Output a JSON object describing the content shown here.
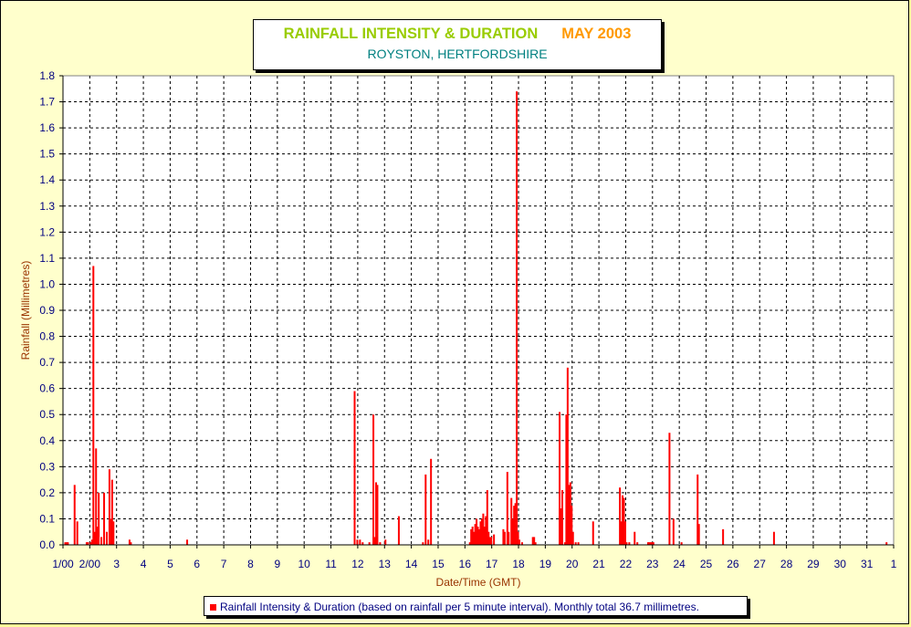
{
  "chart_data": {
    "type": "bar",
    "title": "RAINFALL INTENSITY & DURATION",
    "month": "MAY 2003",
    "subtitle": "ROYSTON, HERTFORDSHIRE",
    "xlabel": "Date/Time (GMT)",
    "ylabel": "Rainfall (Millimetres)",
    "ylim": [
      0,
      1.8
    ],
    "xlim": [
      1,
      32
    ],
    "grid": true,
    "x_tick_labels": [
      "1/00",
      "2/00",
      "3",
      "4",
      "5",
      "6",
      "7",
      "8",
      "9",
      "10",
      "11",
      "12",
      "13",
      "14",
      "15",
      "16",
      "17",
      "18",
      "19",
      "20",
      "21",
      "22",
      "23",
      "24",
      "25",
      "26",
      "27",
      "28",
      "29",
      "30",
      "31",
      "1"
    ],
    "y_tick_labels": [
      "0.0",
      "0.1",
      "0.2",
      "0.3",
      "0.4",
      "0.5",
      "0.6",
      "0.7",
      "0.8",
      "0.9",
      "1.0",
      "1.1",
      "1.2",
      "1.3",
      "1.4",
      "1.5",
      "1.6",
      "1.7",
      "1.8"
    ],
    "bar_color": "#ff0000",
    "series": [
      {
        "name": "Rainfall Intensity & Duration (based on rainfall per 5 minute interval). Monthly total 36.7 millimetres.",
        "points": [
          [
            1.05,
            0.01
          ],
          [
            1.1,
            0.01
          ],
          [
            1.15,
            0.01
          ],
          [
            1.4,
            0.23
          ],
          [
            1.5,
            0.09
          ],
          [
            1.85,
            0.01
          ],
          [
            1.9,
            0.01
          ],
          [
            2.0,
            0.01
          ],
          [
            2.05,
            0.02
          ],
          [
            2.1,
            1.07
          ],
          [
            2.15,
            0.05
          ],
          [
            2.2,
            0.37
          ],
          [
            2.25,
            0.07
          ],
          [
            2.3,
            0.2
          ],
          [
            2.4,
            0.03
          ],
          [
            2.5,
            0.2
          ],
          [
            2.6,
            0.05
          ],
          [
            2.7,
            0.29
          ],
          [
            2.75,
            0.1
          ],
          [
            2.8,
            0.25
          ],
          [
            2.85,
            0.09
          ],
          [
            3.45,
            0.02
          ],
          [
            3.5,
            0.01
          ],
          [
            5.6,
            0.02
          ],
          [
            11.85,
            0.59
          ],
          [
            11.95,
            0.02
          ],
          [
            12.05,
            0.02
          ],
          [
            12.15,
            0.01
          ],
          [
            12.4,
            0.01
          ],
          [
            12.55,
            0.5
          ],
          [
            12.6,
            0.03
          ],
          [
            12.65,
            0.24
          ],
          [
            12.7,
            0.23
          ],
          [
            12.8,
            0.01
          ],
          [
            13.0,
            0.02
          ],
          [
            13.5,
            0.11
          ],
          [
            14.4,
            0.01
          ],
          [
            14.5,
            0.27
          ],
          [
            14.6,
            0.02
          ],
          [
            14.7,
            0.33
          ],
          [
            16.15,
            0.01
          ],
          [
            16.2,
            0.06
          ],
          [
            16.25,
            0.07
          ],
          [
            16.3,
            0.05
          ],
          [
            16.35,
            0.08
          ],
          [
            16.4,
            0.1
          ],
          [
            16.45,
            0.07
          ],
          [
            16.5,
            0.06
          ],
          [
            16.55,
            0.09
          ],
          [
            16.6,
            0.1
          ],
          [
            16.65,
            0.12
          ],
          [
            16.7,
            0.07
          ],
          [
            16.75,
            0.11
          ],
          [
            16.8,
            0.21
          ],
          [
            16.85,
            0.05
          ],
          [
            16.9,
            0.03
          ],
          [
            16.95,
            0.03
          ],
          [
            17.05,
            0.04
          ],
          [
            17.4,
            0.06
          ],
          [
            17.45,
            0.05
          ],
          [
            17.55,
            0.28
          ],
          [
            17.6,
            0.05
          ],
          [
            17.7,
            0.18
          ],
          [
            17.75,
            0.1
          ],
          [
            17.8,
            0.15
          ],
          [
            17.85,
            0.16
          ],
          [
            17.9,
            1.74
          ],
          [
            17.95,
            0.05
          ],
          [
            18.0,
            0.02
          ],
          [
            18.1,
            0.01
          ],
          [
            18.5,
            0.03
          ],
          [
            18.55,
            0.03
          ],
          [
            18.6,
            0.01
          ],
          [
            19.5,
            0.51
          ],
          [
            19.55,
            0.14
          ],
          [
            19.6,
            0.21
          ],
          [
            19.7,
            0.01
          ],
          [
            19.75,
            0.5
          ],
          [
            19.8,
            0.68
          ],
          [
            19.85,
            0.23
          ],
          [
            19.9,
            0.24
          ],
          [
            19.95,
            0.15
          ],
          [
            20.0,
            0.05
          ],
          [
            20.1,
            0.01
          ],
          [
            20.2,
            0.01
          ],
          [
            20.75,
            0.09
          ],
          [
            21.75,
            0.22
          ],
          [
            21.8,
            0.09
          ],
          [
            21.85,
            0.19
          ],
          [
            21.9,
            0.18
          ],
          [
            21.95,
            0.09
          ],
          [
            22.0,
            0.01
          ],
          [
            22.1,
            0.01
          ],
          [
            22.3,
            0.05
          ],
          [
            22.4,
            0.01
          ],
          [
            22.8,
            0.01
          ],
          [
            22.85,
            0.01
          ],
          [
            22.9,
            0.01
          ],
          [
            22.95,
            0.01
          ],
          [
            23.0,
            0.01
          ],
          [
            23.6,
            0.43
          ],
          [
            23.75,
            0.1
          ],
          [
            24.05,
            0.01
          ],
          [
            24.65,
            0.27
          ],
          [
            24.7,
            0.08
          ],
          [
            25.6,
            0.06
          ],
          [
            27.5,
            0.05
          ],
          [
            31.7,
            0.01
          ]
        ]
      }
    ]
  }
}
